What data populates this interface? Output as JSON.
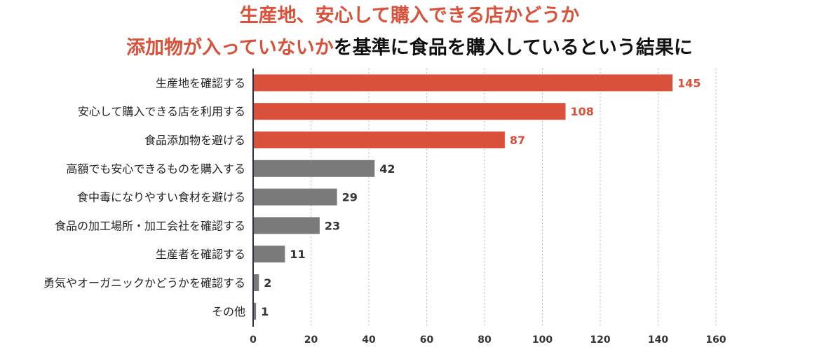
{
  "title": {
    "line1_highlight": "生産地、安心して購入できる店かどうか",
    "line2_highlight": "添加物が入っていないか",
    "line2_rest": "を基準に食品を購入しているという結果に"
  },
  "colors": {
    "highlight": "#d9513a",
    "default": "#7a7a7a",
    "grid": "#b8b8c8",
    "axis": "#2a2f45"
  },
  "chart_data": {
    "type": "bar",
    "orientation": "horizontal",
    "categories": [
      "生産地を確認する",
      "安心して購入できる店を利用する",
      "食品添加物を避ける",
      "高額でも安心できるものを購入する",
      "食中毒になりやすい食材を避ける",
      "食品の加工場所・加工会社を確認する",
      "生産者を確認する",
      "勇気やオーガニックかどうかを確認する",
      "その他"
    ],
    "values": [
      145,
      108,
      87,
      42,
      29,
      23,
      11,
      2,
      1
    ],
    "highlighted": [
      true,
      true,
      true,
      false,
      false,
      false,
      false,
      false,
      false
    ],
    "xlim": [
      0,
      160
    ],
    "xticks": [
      0,
      20,
      40,
      60,
      80,
      100,
      120,
      140,
      160
    ],
    "grid": "vertical dotted",
    "legend": "none"
  }
}
